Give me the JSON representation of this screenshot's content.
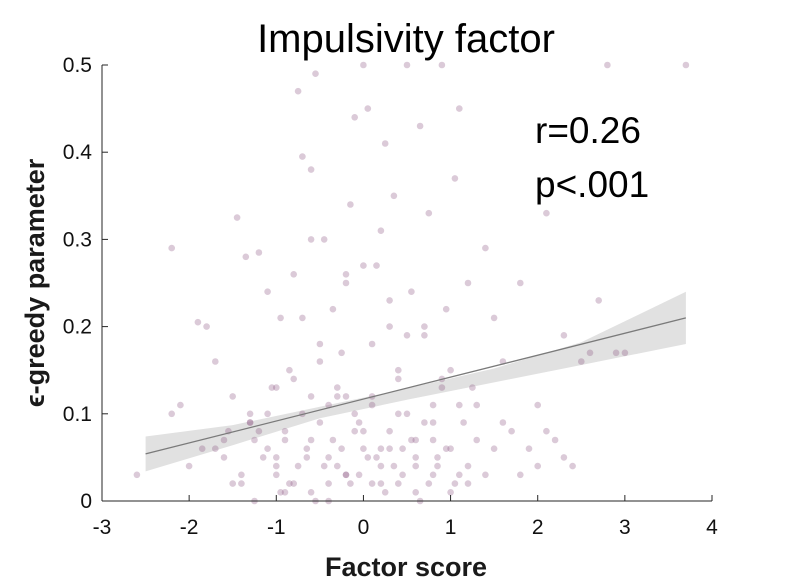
{
  "chart_data": {
    "type": "scatter",
    "title": "Impulsivity factor",
    "xlabel": "Factor score",
    "ylabel": "ϵ-greedy parameter",
    "xlim": [
      -3,
      4
    ],
    "ylim": [
      0,
      0.5
    ],
    "xticks": [
      "-3",
      "-2",
      "-1",
      "0",
      "1",
      "2",
      "3",
      "4"
    ],
    "yticks": [
      "0",
      "0.1",
      "0.2",
      "0.3",
      "0.4",
      "0.5"
    ],
    "grid": false,
    "annotations": [
      "r=0.26",
      "p<.001"
    ],
    "point_color": "#8e5a86",
    "fit_line": {
      "x": [
        -2.5,
        3.7
      ],
      "y": [
        0.054,
        0.21
      ],
      "color": "#7a7a7a"
    },
    "ci_band": {
      "x": [
        -2.5,
        -1.5,
        -0.5,
        0.5,
        1.5,
        2.5,
        3.7
      ],
      "lower": [
        0.034,
        0.064,
        0.095,
        0.116,
        0.136,
        0.156,
        0.18
      ],
      "upper": [
        0.074,
        0.087,
        0.108,
        0.129,
        0.152,
        0.182,
        0.24
      ],
      "color": "#e1e1e1"
    },
    "points": {
      "x": [
        -2.6,
        -2.2,
        -2.1,
        -2.0,
        -1.9,
        -1.85,
        -1.8,
        -1.7,
        -1.6,
        -1.55,
        -1.5,
        -1.45,
        -1.4,
        -1.35,
        -1.3,
        -1.25,
        -1.2,
        -1.15,
        -1.1,
        -1.05,
        -1.0,
        -0.95,
        -0.9,
        -0.85,
        -0.8,
        -0.75,
        -0.7,
        -0.65,
        -0.6,
        -0.55,
        -0.5,
        -0.45,
        -0.4,
        -0.35,
        -0.3,
        -0.25,
        -0.2,
        -0.15,
        -0.1,
        -0.05,
        0.0,
        0.05,
        0.1,
        0.15,
        0.2,
        0.25,
        0.3,
        0.35,
        0.4,
        0.45,
        0.5,
        0.55,
        0.6,
        0.65,
        0.7,
        0.75,
        0.8,
        0.85,
        0.9,
        0.95,
        1.0,
        1.05,
        1.1,
        1.15,
        1.2,
        1.25,
        1.3,
        1.4,
        1.5,
        1.6,
        1.7,
        1.8,
        1.9,
        2.0,
        2.1,
        2.2,
        2.3,
        2.4,
        2.5,
        2.7,
        2.8,
        3.0,
        3.7,
        -1.7,
        -1.3,
        -1.0,
        -0.8,
        -0.6,
        -0.4,
        -0.2,
        0.0,
        0.2,
        0.4,
        0.6,
        0.8,
        1.0,
        1.2,
        -1.2,
        -0.9,
        -0.7,
        -0.5,
        -0.3,
        -0.1,
        0.1,
        0.3,
        0.5,
        0.7,
        0.9,
        1.1,
        -1.4,
        -1.1,
        -0.85,
        -0.65,
        -0.45,
        -0.25,
        -0.05,
        0.15,
        0.35,
        0.55,
        0.75,
        0.95,
        -1.5,
        -1.0,
        -0.6,
        -0.2,
        0.2,
        0.6,
        1.0,
        1.4,
        -0.8,
        -0.5,
        -0.2,
        0.1,
        0.4,
        0.7,
        1.3,
        1.6,
        2.1,
        2.6,
        -0.7,
        0.0,
        0.3,
        0.9,
        -1.1,
        -0.3,
        0.5,
        -0.9,
        -0.4,
        0.1,
        0.6,
        1.1,
        -1.3,
        -0.6,
        0.0,
        0.4,
        0.8,
        -0.75,
        -0.35,
        0.05,
        0.45,
        0.85,
        -1.25,
        -0.95,
        -0.55,
        -0.15,
        0.25,
        0.65,
        1.05,
        -0.6,
        -0.2,
        0.2,
        -1.6,
        2.0,
        2.3,
        1.8,
        2.9,
        1.5,
        -0.1,
        0.3,
        -2.2,
        1.2,
        -1.0,
        0.8,
        -0.4
      ],
      "y": [
        0.03,
        0.29,
        0.11,
        0.04,
        0.205,
        0.06,
        0.2,
        0.16,
        0.05,
        0.08,
        0.12,
        0.325,
        0.02,
        0.28,
        0.1,
        0.07,
        0.285,
        0.05,
        0.24,
        0.13,
        0.03,
        0.21,
        0.08,
        0.15,
        0.26,
        0.47,
        0.395,
        0.06,
        0.38,
        0.49,
        0.18,
        0.3,
        0.11,
        0.22,
        0.04,
        0.17,
        0.25,
        0.34,
        0.44,
        0.09,
        0.5,
        0.45,
        0.12,
        0.27,
        0.06,
        0.41,
        0.2,
        0.35,
        0.14,
        0.03,
        0.5,
        0.24,
        0.07,
        0.43,
        0.19,
        0.33,
        0.11,
        0.05,
        0.5,
        0.22,
        0.15,
        0.37,
        0.45,
        0.09,
        0.25,
        0.13,
        0.07,
        0.29,
        0.21,
        0.16,
        0.08,
        0.25,
        0.06,
        0.11,
        0.33,
        0.07,
        0.19,
        0.04,
        0.16,
        0.23,
        0.5,
        0.17,
        0.5,
        0.06,
        0.09,
        0.04,
        0.02,
        0.07,
        0.05,
        0.03,
        0.06,
        0.04,
        0.02,
        0.05,
        0.03,
        0.06,
        0.04,
        0.08,
        0.07,
        0.1,
        0.09,
        0.12,
        0.08,
        0.11,
        0.06,
        0.1,
        0.09,
        0.13,
        0.11,
        0.03,
        0.06,
        0.02,
        0.05,
        0.04,
        0.06,
        0.03,
        0.05,
        0.04,
        0.07,
        0.02,
        0.06,
        0.02,
        0.05,
        0.01,
        0.03,
        0.02,
        0.04,
        0.01,
        0.03,
        0.14,
        0.16,
        0.12,
        0.18,
        0.15,
        0.2,
        0.11,
        0.09,
        0.08,
        0.17,
        0.21,
        0.27,
        0.23,
        0.14,
        0.1,
        0.13,
        0.19,
        0.01,
        0.0,
        0.02,
        0.01,
        0.03,
        0.09,
        0.12,
        0.08,
        0.1,
        0.07,
        0.04,
        0.07,
        0.05,
        0.06,
        0.04,
        0.0,
        0.01,
        0.0,
        0.02,
        0.01,
        0.0,
        0.02,
        0.3,
        0.26,
        0.31,
        0.07,
        0.04,
        0.05,
        0.03,
        0.17,
        0.06,
        0.1,
        0.08,
        0.1,
        0.02,
        0.13,
        0.09,
        0.02
      ]
    }
  }
}
